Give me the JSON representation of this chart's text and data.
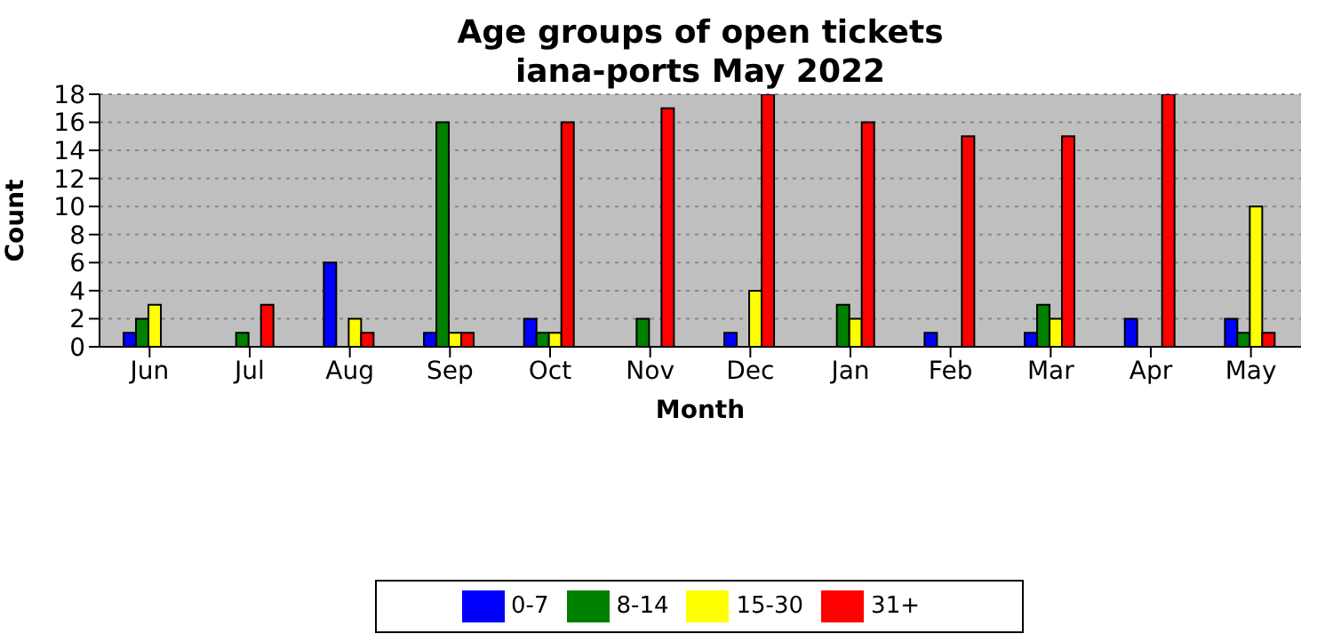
{
  "chart_data": {
    "type": "bar",
    "title": "Age groups of open tickets\niana-ports May 2022",
    "xlabel": "Month",
    "ylabel": "Count",
    "categories": [
      "Jun",
      "Jul",
      "Aug",
      "Sep",
      "Oct",
      "Nov",
      "Dec",
      "Jan",
      "Feb",
      "Mar",
      "Apr",
      "May"
    ],
    "series": [
      {
        "name": "0-7",
        "color": "#0000ff",
        "values": [
          1,
          0,
          6,
          1,
          2,
          0,
          1,
          0,
          1,
          1,
          2,
          2
        ]
      },
      {
        "name": "8-14",
        "color": "#008000",
        "values": [
          2,
          1,
          0,
          16,
          1,
          2,
          0,
          3,
          0,
          3,
          0,
          1
        ]
      },
      {
        "name": "15-30",
        "color": "#ffff00",
        "values": [
          3,
          0,
          2,
          1,
          1,
          0,
          4,
          2,
          0,
          2,
          0,
          10
        ]
      },
      {
        "name": "31+",
        "color": "#ff0000",
        "values": [
          0,
          3,
          1,
          1,
          16,
          17,
          18,
          16,
          15,
          15,
          18,
          1
        ]
      }
    ],
    "ylim": [
      0,
      18
    ],
    "yticks": [
      0,
      2,
      4,
      6,
      8,
      10,
      12,
      14,
      16,
      18
    ],
    "grid": "y",
    "legend": "bottom"
  }
}
